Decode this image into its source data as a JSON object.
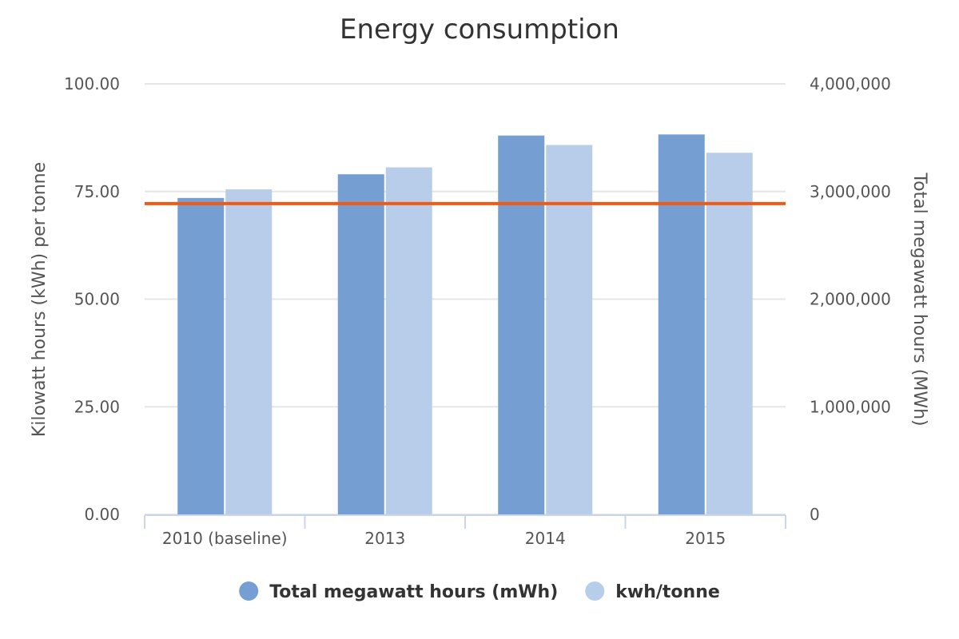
{
  "chart_data": {
    "type": "bar",
    "title": "Energy consumption",
    "categories": [
      "2010 (baseline)",
      "2013",
      "2014",
      "2015"
    ],
    "series": [
      {
        "name": "Total megawatt hours (mWh)",
        "axis": "right",
        "color": "#759ed3",
        "values": [
          2940000,
          3160000,
          3520000,
          3530000
        ]
      },
      {
        "name": "kwh/tonne",
        "axis": "left",
        "color": "#b8cdea",
        "values": [
          75.5,
          80.6,
          85.8,
          84.0
        ]
      }
    ],
    "reference_line": {
      "axis": "left",
      "value": 72.2,
      "color": "#f05a13"
    },
    "y_left": {
      "label": "Kilowatt hours (kWh) per tonne",
      "range": [
        0,
        100
      ],
      "ticks": [
        0,
        25,
        50,
        75,
        100
      ],
      "tick_labels": [
        "0.00",
        "25.00",
        "50.00",
        "75.00",
        "100.00"
      ]
    },
    "y_right": {
      "label": "Total megawatt hours (MWh)",
      "range": [
        0,
        4000000
      ],
      "ticks": [
        0,
        1000000,
        2000000,
        3000000,
        4000000
      ],
      "tick_labels": [
        "0",
        "1,000,000",
        "2,000,000",
        "3,000,000",
        "4,000,000"
      ]
    },
    "grid": true,
    "legend_position": "bottom-center"
  }
}
